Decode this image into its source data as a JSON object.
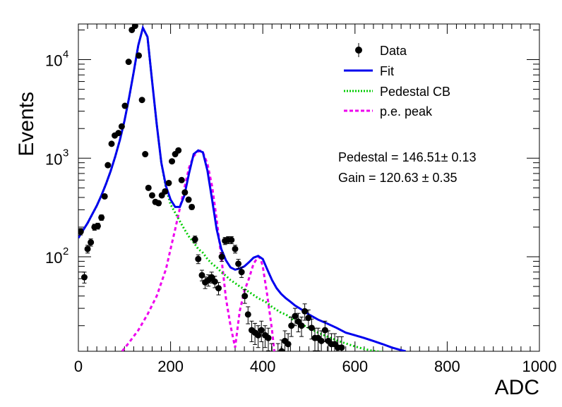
{
  "chart_data": {
    "type": "scatter",
    "xlabel": "ADC",
    "ylabel": "Events",
    "xlim": [
      0,
      1000
    ],
    "ylog": true,
    "ylim": [
      11,
      23000
    ],
    "x_ticks": [
      0,
      200,
      400,
      600,
      800,
      1000
    ],
    "x_tick_labels": [
      "0",
      "200",
      "400",
      "600",
      "800",
      "1000"
    ],
    "y_ticks": [
      100,
      1000,
      10000
    ],
    "y_tick_labels": [
      {
        "base": "10",
        "exp": "2"
      },
      {
        "base": "10",
        "exp": "3"
      },
      {
        "base": "10",
        "exp": "4"
      }
    ],
    "legend": {
      "placement": "top-right",
      "entries": [
        {
          "label": "Data",
          "style": "marker",
          "color": "#000000"
        },
        {
          "label": "Fit",
          "style": "solid",
          "color": "#0000ee"
        },
        {
          "label": "Pedestal CB",
          "style": "dotted",
          "color": "#00cc00"
        },
        {
          "label": "p.e. peak",
          "style": "dashed",
          "color": "#ee00ee"
        }
      ]
    },
    "annotations": [
      "Pedestal = 146.51± 0.13",
      "Gain = 120.63 ± 0.35"
    ],
    "colors": {
      "data": "#000000",
      "fit": "#0000ee",
      "pedestal": "#00cc00",
      "pe": "#ee00ee"
    },
    "series": [
      {
        "name": "Data",
        "kind": "points",
        "x": [
          5,
          13,
          20,
          27,
          35,
          42,
          50,
          57,
          64,
          72,
          79,
          87,
          94,
          101,
          109,
          116,
          123,
          131,
          138,
          145,
          152,
          160,
          167,
          174,
          181,
          188,
          196,
          203,
          210,
          217,
          224,
          231,
          239,
          246,
          253,
          260,
          268,
          275,
          282,
          289,
          296,
          304,
          311,
          318,
          325,
          332,
          340,
          347,
          354,
          361,
          368,
          376,
          383,
          390,
          397,
          405,
          412,
          419,
          426,
          433,
          441,
          448,
          455,
          462,
          470,
          477,
          484,
          491,
          499,
          506,
          513,
          520,
          527,
          535,
          542,
          549,
          556,
          563,
          571
        ],
        "y": [
          180,
          62,
          120,
          140,
          200,
          205,
          250,
          410,
          850,
          1400,
          1700,
          1800,
          2100,
          3400,
          9500,
          20000,
          22000,
          11000,
          3900,
          1100,
          500,
          420,
          360,
          350,
          420,
          460,
          560,
          930,
          1100,
          1200,
          600,
          450,
          380,
          320,
          150,
          95,
          65,
          55,
          58,
          62,
          56,
          48,
          100,
          145,
          148,
          148,
          120,
          85,
          70,
          40,
          26,
          18,
          17,
          16,
          18,
          16,
          15,
          10,
          8,
          10,
          11,
          14,
          13,
          20,
          25,
          22,
          20,
          28,
          24,
          19,
          15,
          15,
          14,
          18,
          14,
          13,
          13,
          12,
          12
        ]
      },
      {
        "name": "Fit",
        "kind": "line",
        "x": [
          0,
          10,
          20,
          30,
          40,
          50,
          60,
          70,
          80,
          90,
          100,
          110,
          120,
          130,
          140,
          150,
          160,
          170,
          180,
          190,
          200,
          210,
          220,
          230,
          240,
          250,
          260,
          270,
          280,
          290,
          300,
          310,
          320,
          330,
          340,
          350,
          360,
          370,
          380,
          390,
          400,
          410,
          420,
          430,
          440,
          450,
          460,
          470,
          480,
          490,
          500,
          520,
          540,
          560,
          580,
          600,
          620,
          640,
          660,
          680,
          700,
          710
        ],
        "y": [
          155,
          185,
          220,
          270,
          330,
          420,
          550,
          740,
          1040,
          1530,
          2400,
          4100,
          7500,
          14000,
          21000,
          17000,
          6000,
          2200,
          900,
          520,
          380,
          320,
          320,
          420,
          700,
          1100,
          1200,
          1150,
          750,
          380,
          190,
          120,
          92,
          78,
          74,
          76,
          80,
          88,
          98,
          102,
          95,
          74,
          58,
          48,
          42,
          38,
          35,
          32,
          30,
          28,
          26,
          23,
          21,
          19,
          17,
          16,
          15,
          14,
          13,
          12,
          11.3,
          11
        ]
      },
      {
        "name": "Pedestal CB",
        "kind": "dotted",
        "x": [
          0,
          10,
          20,
          30,
          40,
          50,
          60,
          70,
          80,
          90,
          100,
          110,
          120,
          130,
          140,
          150,
          160,
          170,
          180,
          190,
          200,
          210,
          220,
          230,
          240,
          250,
          260,
          270,
          280,
          290,
          300,
          310,
          320,
          330,
          340,
          350,
          360,
          370,
          380,
          390,
          400,
          410,
          420,
          430,
          440,
          450,
          460,
          470,
          480,
          490,
          500,
          520,
          540,
          560,
          580,
          600,
          620,
          640,
          660
        ],
        "y": [
          155,
          185,
          220,
          270,
          330,
          420,
          550,
          740,
          1040,
          1530,
          2400,
          4100,
          7500,
          14000,
          21000,
          17000,
          6000,
          2200,
          900,
          500,
          340,
          280,
          230,
          190,
          160,
          140,
          120,
          110,
          95,
          85,
          78,
          70,
          64,
          58,
          54,
          50,
          47,
          44,
          41,
          38,
          36,
          34,
          31,
          29,
          27,
          26,
          24,
          22.5,
          21,
          20,
          19,
          17,
          15.5,
          14.2,
          13.2,
          12.3,
          11.6,
          11.1,
          10.8
        ]
      },
      {
        "name": "p.e. peak",
        "kind": "dashed",
        "x": [
          95,
          110,
          130,
          150,
          170,
          190,
          200,
          210,
          220,
          230,
          240,
          250,
          260,
          265,
          270,
          280,
          290,
          300,
          310,
          320,
          330,
          340,
          350,
          360,
          370,
          380,
          390,
          395,
          400,
          410,
          420,
          425
        ],
        "y": [
          11,
          13.5,
          18,
          26,
          40,
          75,
          120,
          190,
          310,
          500,
          800,
          1050,
          1170,
          1190,
          1150,
          880,
          520,
          240,
          100,
          38,
          20,
          12,
          28,
          45,
          60,
          85,
          100,
          96,
          80,
          40,
          18,
          11
        ]
      }
    ]
  }
}
